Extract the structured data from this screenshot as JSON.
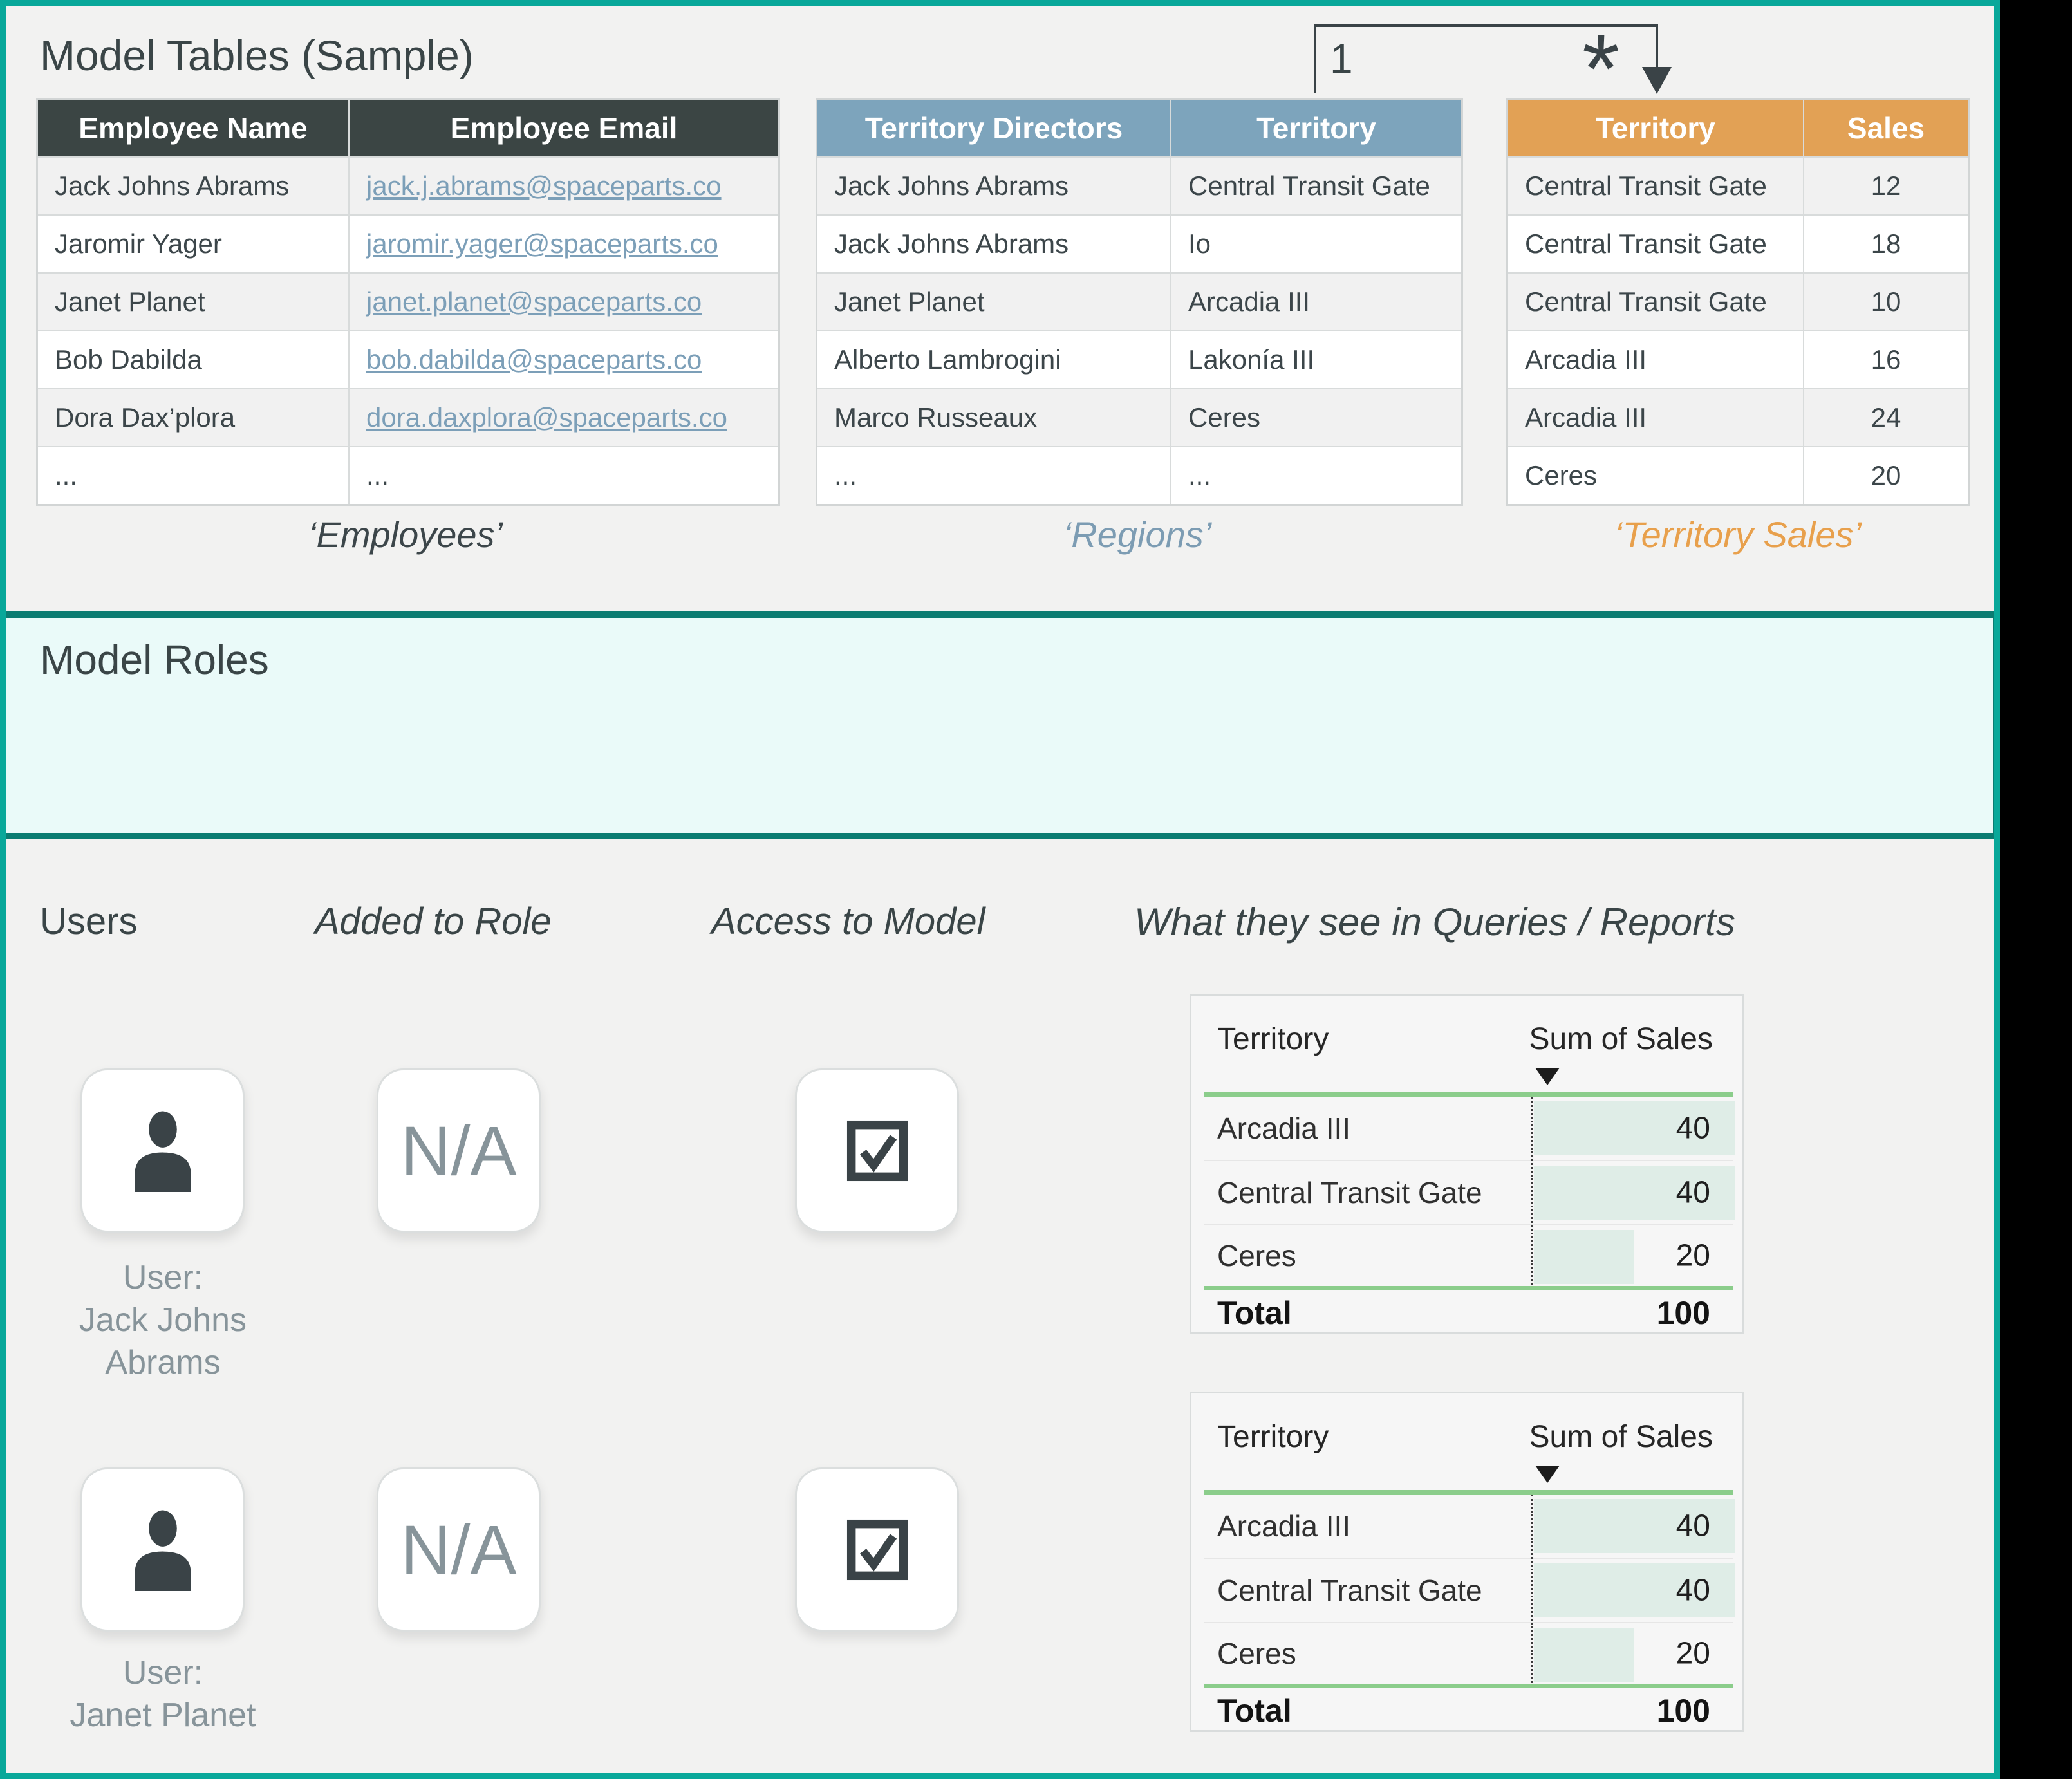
{
  "model_tables": {
    "title": "Model Tables (Sample)",
    "relationship": {
      "one": "1",
      "many": "*"
    },
    "employees": {
      "caption": "‘Employees’",
      "headers": [
        "Employee Name",
        "Employee Email"
      ],
      "rows": [
        [
          "Jack Johns Abrams",
          "jack.j.abrams@spaceparts.co"
        ],
        [
          "Jaromir Yager",
          "jaromir.yager@spaceparts.co"
        ],
        [
          "Janet Planet",
          "janet.planet@spaceparts.co"
        ],
        [
          "Bob Dabilda",
          "bob.dabilda@spaceparts.co"
        ],
        [
          "Dora Dax’plora",
          "dora.daxplora@spaceparts.co"
        ],
        [
          "...",
          "..."
        ]
      ]
    },
    "regions": {
      "caption": "‘Regions’",
      "headers": [
        "Territory Directors",
        "Territory"
      ],
      "rows": [
        [
          "Jack Johns Abrams",
          "Central Transit Gate"
        ],
        [
          "Jack Johns Abrams",
          "Io"
        ],
        [
          "Janet Planet",
          "Arcadia III"
        ],
        [
          "Alberto Lambrogini",
          "Lakonía III"
        ],
        [
          "Marco Russeaux",
          "Ceres"
        ],
        [
          "...",
          "..."
        ]
      ]
    },
    "territory_sales": {
      "caption": "‘Territory Sales’",
      "headers": [
        "Territory",
        "Sales"
      ],
      "rows": [
        [
          "Central Transit Gate",
          "12"
        ],
        [
          "Central Transit Gate",
          "18"
        ],
        [
          "Central Transit Gate",
          "10"
        ],
        [
          "Arcadia III",
          "16"
        ],
        [
          "Arcadia III",
          "24"
        ],
        [
          "Ceres",
          "20"
        ]
      ]
    }
  },
  "model_roles": {
    "title": "Model Roles"
  },
  "access": {
    "headers": {
      "users": "Users",
      "added_to_role": "Added to Role",
      "access_to_model": "Access to Model",
      "reports": "What they see in Queries / Reports"
    },
    "users": [
      {
        "label_lines": [
          "User:",
          "Jack Johns",
          "Abrams"
        ],
        "added_to_role": "N/A"
      },
      {
        "label_lines": [
          "User:",
          "Janet Planet"
        ],
        "added_to_role": "N/A"
      }
    ],
    "report_table": {
      "col1": "Territory",
      "col2": "Sum of Sales",
      "rows": [
        {
          "territory": "Arcadia III",
          "sales": 40
        },
        {
          "territory": "Central Transit Gate",
          "sales": 40
        },
        {
          "territory": "Ceres",
          "sales": 20
        }
      ],
      "total_label": "Total",
      "total": 100,
      "sales_max": 40
    }
  },
  "colors": {
    "frame_teal": "#09A89A",
    "band_border_teal": "#0B7C72",
    "band_bg": "#EAFAF9",
    "page_bg": "#F2F2F1",
    "header_dark": "#3B4544",
    "header_blue": "#7DA4BC",
    "header_orange": "#E2A155",
    "link_blue": "#7C9FB8",
    "muted_gray": "#87949A",
    "report_green_line": "#8BCD8B",
    "report_bar_mint": "#DFEDE7"
  }
}
